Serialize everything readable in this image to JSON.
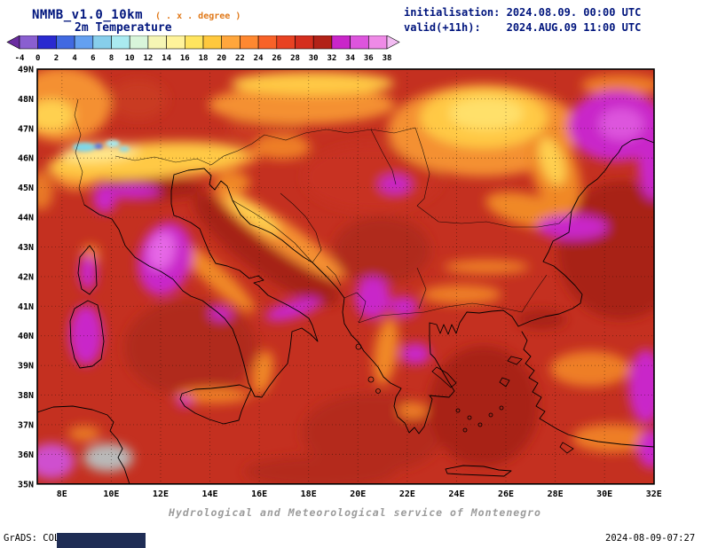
{
  "header": {
    "model_title": "NMMB_v1.0_10km",
    "resolution_note": "( . x . degree )",
    "variable_label": "2m Temperature",
    "init_line": "initialisation: 2024.08.09. 00:00 UTC",
    "valid_line": "valid(+11h):    2024.AUG.09 11:00 UTC"
  },
  "colorbar": {
    "tick_labels": [
      "-4",
      "0",
      "2",
      "4",
      "6",
      "8",
      "10",
      "12",
      "14",
      "16",
      "18",
      "20",
      "22",
      "24",
      "26",
      "28",
      "30",
      "32",
      "34",
      "36",
      "38"
    ],
    "segment_colors": [
      "#6a2ca0",
      "#8a5fd0",
      "#2a2ad0",
      "#4169e1",
      "#64a0f0",
      "#87ceeb",
      "#aaeaf0",
      "#d8f5da",
      "#f5f5b4",
      "#fff39a",
      "#ffe45e",
      "#ffc83d",
      "#ffa63c",
      "#ff8830",
      "#f86228",
      "#e84222",
      "#d42e1e",
      "#b22218",
      "#c926c9",
      "#dd55dd",
      "#ee8ae6",
      "#f2bcf2"
    ]
  },
  "map": {
    "x_ticks": [
      "8E",
      "10E",
      "12E",
      "14E",
      "16E",
      "18E",
      "20E",
      "22E",
      "24E",
      "26E",
      "28E",
      "30E",
      "32E"
    ],
    "y_ticks": [
      "49N",
      "48N",
      "47N",
      "46N",
      "45N",
      "44N",
      "43N",
      "42N",
      "41N",
      "40N",
      "39N",
      "38N",
      "37N",
      "36N",
      "35N"
    ]
  },
  "footer": {
    "service_line": "Hydrological and Meteorological service of Montenegro",
    "grads_credit": "GrADS: COLA/IGES",
    "timestamp": "2024-08-09-07:27"
  },
  "chart_data": {
    "type": "heatmap",
    "title": "2m Temperature",
    "model": "NMMB_v1.0_10km",
    "initialisation": "2024.08.09. 00:00 UTC",
    "valid": "(+11h) 2024.AUG.09 11:00 UTC",
    "colorbar_values_degC": [
      -4,
      0,
      2,
      4,
      6,
      8,
      10,
      12,
      14,
      16,
      18,
      20,
      22,
      24,
      26,
      28,
      30,
      32,
      34,
      36,
      38
    ],
    "x_axis_ticks": [
      "8E",
      "10E",
      "12E",
      "14E",
      "16E",
      "18E",
      "20E",
      "22E",
      "24E",
      "26E",
      "28E",
      "30E",
      "32E"
    ],
    "y_axis_ticks": [
      "49N",
      "48N",
      "47N",
      "46N",
      "45N",
      "44N",
      "43N",
      "42N",
      "41N",
      "40N",
      "39N",
      "38N",
      "37N",
      "36N",
      "35N"
    ]
  }
}
